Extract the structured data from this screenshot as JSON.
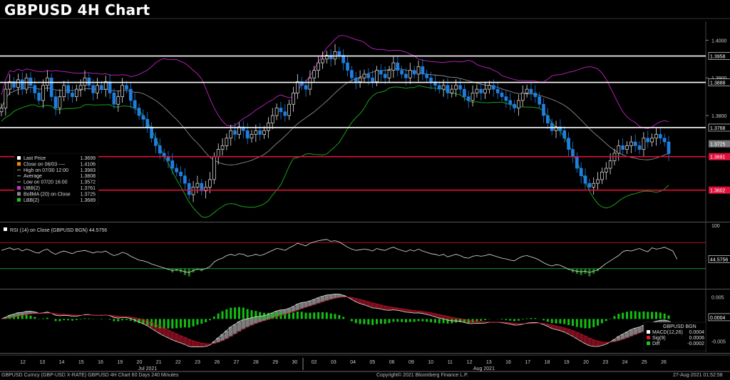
{
  "title": "GBPUSD 4H Chart",
  "footer": {
    "left": "GBPUSD Curncy (GBP-USD X-RATE) GBPUSD 4H Chart 60 Days 240 Minutes",
    "center": "Copyright© 2021 Bloomberg Finance L.P.",
    "right": "27-Aug-2021 01:52:58"
  },
  "colors": {
    "up": "#e8e8e8",
    "down": "#1f7fe0",
    "ubb": "#b020b0",
    "lbb": "#1aa01a",
    "bollma": "#9a9a9a",
    "hline_white": "#ffffff",
    "hline_red": "#e0103a",
    "rsi": "#e0e0e0",
    "macd": "#d0d0d0",
    "sig": "#c0102a",
    "diff": "#12c012"
  },
  "chart_data": [
    {
      "type": "candlestick",
      "name": "price",
      "yaxis_ticks": [
        "1.4000",
        "1.3900",
        "1.3800"
      ],
      "ylim": [
        1.352,
        1.405
      ],
      "x_tick_labels": [
        "12",
        "13",
        "14",
        "15",
        "16",
        "19",
        "20",
        "21",
        "22",
        "23",
        "26",
        "27",
        "28",
        "29",
        "30",
        "02",
        "03",
        "04",
        "05",
        "06",
        "09",
        "10",
        "11",
        "12",
        "13",
        "16",
        "17",
        "18",
        "19",
        "20",
        "23",
        "24",
        "25",
        "26"
      ],
      "month_labels": [
        "Jul 2021",
        "Aug 2021"
      ],
      "horizontal_lines": [
        {
          "label": "1.3958",
          "value": 1.3958,
          "color": "white"
        },
        {
          "label": "1.3888",
          "value": 1.3888,
          "color": "white"
        },
        {
          "label": "1.3768",
          "value": 1.3768,
          "color": "white"
        },
        {
          "label": "1.3691",
          "value": 1.3691,
          "color": "red"
        },
        {
          "label": "1.3602",
          "value": 1.3602,
          "color": "red"
        }
      ],
      "price_badges": [
        {
          "label": "1.3725",
          "value": 1.3725,
          "color": "#777777"
        },
        {
          "label": "1.3691",
          "value": 1.3691,
          "color": "#e0103a"
        }
      ],
      "closes": [
        1.382,
        1.387,
        1.389,
        1.3875,
        1.3895,
        1.387,
        1.39,
        1.388,
        1.386,
        1.384,
        1.388,
        1.39,
        1.385,
        1.382,
        1.385,
        1.388,
        1.386,
        1.385,
        1.387,
        1.388,
        1.39,
        1.388,
        1.386,
        1.388,
        1.387,
        1.389,
        1.386,
        1.383,
        1.385,
        1.388,
        1.387,
        1.384,
        1.382,
        1.38,
        1.379,
        1.377,
        1.374,
        1.372,
        1.37,
        1.369,
        1.368,
        1.366,
        1.365,
        1.364,
        1.362,
        1.359,
        1.361,
        1.362,
        1.36,
        1.361,
        1.363,
        1.369,
        1.371,
        1.372,
        1.374,
        1.376,
        1.375,
        1.377,
        1.376,
        1.374,
        1.375,
        1.376,
        1.375,
        1.376,
        1.378,
        1.38,
        1.382,
        1.381,
        1.38,
        1.383,
        1.386,
        1.389,
        1.388,
        1.387,
        1.39,
        1.392,
        1.394,
        1.395,
        1.396,
        1.395,
        1.397,
        1.396,
        1.394,
        1.392,
        1.39,
        1.389,
        1.39,
        1.391,
        1.39,
        1.389,
        1.392,
        1.391,
        1.39,
        1.392,
        1.394,
        1.392,
        1.391,
        1.39,
        1.392,
        1.391,
        1.393,
        1.391,
        1.39,
        1.389,
        1.388,
        1.387,
        1.388,
        1.386,
        1.387,
        1.388,
        1.387,
        1.385,
        1.384,
        1.386,
        1.387,
        1.386,
        1.387,
        1.388,
        1.387,
        1.386,
        1.385,
        1.384,
        1.383,
        1.382,
        1.384,
        1.386,
        1.387,
        1.386,
        1.385,
        1.383,
        1.38,
        1.378,
        1.376,
        1.377,
        1.376,
        1.374,
        1.371,
        1.369,
        1.366,
        1.364,
        1.362,
        1.361,
        1.362,
        1.363,
        1.365,
        1.366,
        1.368,
        1.37,
        1.372,
        1.371,
        1.372,
        1.373,
        1.372,
        1.371,
        1.374,
        1.373,
        1.374,
        1.375,
        1.374,
        1.373,
        1.3699
      ]
    },
    {
      "type": "line",
      "name": "RSI",
      "ylim": [
        0,
        100
      ],
      "yaxis_ticks": [
        "100"
      ],
      "badge": "44.5756",
      "overbought": 70,
      "oversold": 30,
      "values": [
        58,
        60,
        62,
        59,
        61,
        57,
        60,
        58,
        55,
        54,
        58,
        60,
        55,
        52,
        55,
        57,
        55,
        53,
        56,
        57,
        58,
        56,
        54,
        56,
        55,
        57,
        53,
        50,
        52,
        55,
        53,
        49,
        46,
        43,
        42,
        40,
        37,
        35,
        33,
        31,
        29,
        27,
        28,
        27,
        25,
        24,
        27,
        29,
        28,
        30,
        33,
        40,
        44,
        46,
        50,
        52,
        50,
        53,
        52,
        49,
        50,
        52,
        50,
        52,
        55,
        58,
        61,
        60,
        58,
        62,
        65,
        69,
        67,
        65,
        69,
        71,
        73,
        74,
        75,
        72,
        73,
        71,
        67,
        63,
        60,
        58,
        59,
        60,
        59,
        57,
        61,
        59,
        58,
        61,
        63,
        60,
        58,
        56,
        59,
        57,
        60,
        57,
        55,
        53,
        52,
        50,
        52,
        48,
        50,
        52,
        50,
        47,
        46,
        49,
        50,
        49,
        50,
        52,
        50,
        48,
        46,
        45,
        43,
        42,
        46,
        49,
        50,
        48,
        46,
        43,
        39,
        36,
        34,
        36,
        35,
        32,
        29,
        27,
        26,
        25,
        26,
        24,
        26,
        28,
        33,
        38,
        42,
        46,
        50,
        56,
        58,
        57,
        59,
        61,
        58,
        56,
        62,
        60,
        61,
        63,
        60,
        57,
        44.5756
      ]
    },
    {
      "type": "bar+line",
      "name": "MACD",
      "legend_title": "GBPUSD BGN",
      "yaxis_ticks": [
        "0.005",
        "-0.005"
      ],
      "ylim": [
        -0.0075,
        0.0065
      ],
      "badge": "0.0004",
      "legend": [
        {
          "label": "MACD(12,26)",
          "value": "0.0004"
        },
        {
          "label": "Sig(9)",
          "value": "0.0006"
        },
        {
          "label": "Diff",
          "value": "-0.0002"
        }
      ]
    }
  ],
  "legend": {
    "items": [
      {
        "label": "Last Price",
        "value": "1.3699"
      },
      {
        "label": "Close on 06/03 ----",
        "value": "1.4106"
      },
      {
        "label": "High on 07/30 12:00",
        "value": "1.3983"
      },
      {
        "label": "Average",
        "value": "1.3808"
      },
      {
        "label": "Low on 07/20 16:00",
        "value": "1.3572"
      },
      {
        "label": "UBB(2)",
        "value": "1.3761"
      },
      {
        "label": "BollMA (20)  on Close",
        "value": "1.3725"
      },
      {
        "label": "LBB(2)",
        "value": "1.3689"
      }
    ]
  },
  "rsi_legend": "RSI (14)  on Close (GBPUSD BGN) 44.5756"
}
